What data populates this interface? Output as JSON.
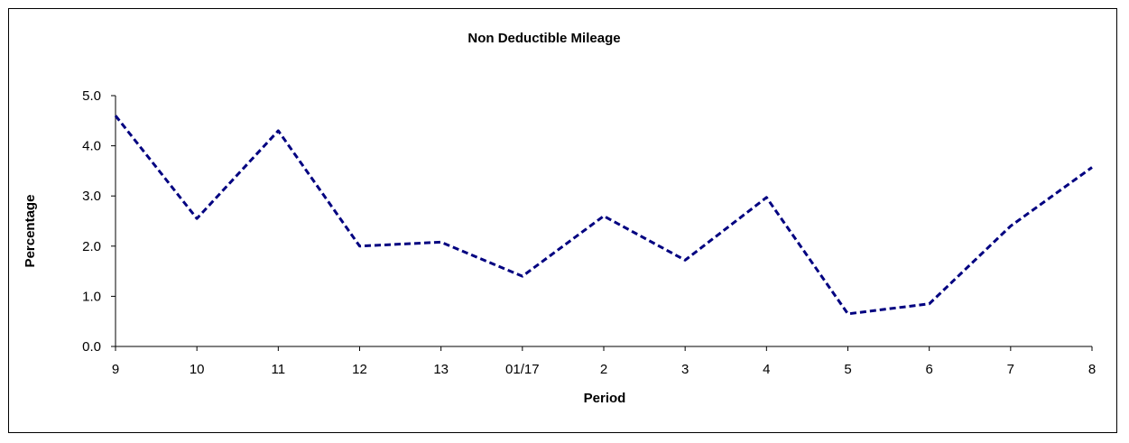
{
  "chart_data": {
    "type": "line",
    "title": "Non Deductible Mileage",
    "xlabel": "Period",
    "ylabel": "Percentage",
    "categories": [
      "9",
      "10",
      "11",
      "12",
      "13",
      "01/17",
      "2",
      "3",
      "4",
      "5",
      "6",
      "7",
      "8"
    ],
    "series": [
      {
        "values": [
          4.6,
          2.55,
          4.3,
          2.0,
          2.08,
          1.4,
          2.6,
          1.72,
          2.97,
          0.65,
          0.85,
          2.4,
          3.57
        ],
        "color": "#000080",
        "style": "dashed"
      }
    ],
    "ylim": [
      0,
      5
    ],
    "yticks": [
      "0.0",
      "1.0",
      "2.0",
      "3.0",
      "4.0",
      "5.0"
    ],
    "grid": false,
    "legend": "none"
  }
}
